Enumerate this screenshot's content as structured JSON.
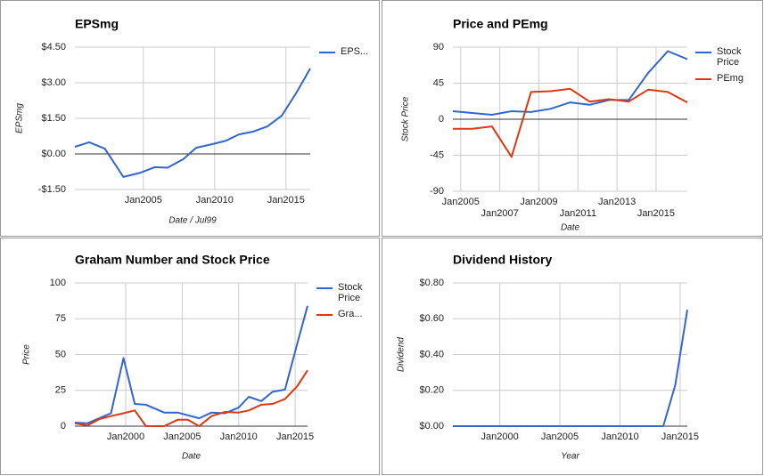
{
  "chart_data": [
    {
      "type": "line",
      "title": "EPSmg",
      "y_label": "EPSmg",
      "x_label": "Date / Jul99",
      "x": [
        2000.2,
        2001.2,
        2002.3,
        2003.6,
        2004.8,
        2005.8,
        2006.7,
        2007.8,
        2008.7,
        2009.8,
        2010.8,
        2011.7,
        2012.7,
        2013.7,
        2014.7,
        2015.7,
        2016.7
      ],
      "series": [
        {
          "name": "EPS...",
          "color": "#3366cc",
          "values": [
            0.3,
            0.49,
            0.22,
            -0.97,
            -0.79,
            -0.56,
            -0.58,
            -0.22,
            0.26,
            0.41,
            0.56,
            0.82,
            0.94,
            1.16,
            1.61,
            2.55,
            3.6
          ]
        }
      ],
      "xlim": [
        2000.2,
        2016.7
      ],
      "xticks": [
        {
          "value": 2005,
          "label": "Jan2005"
        },
        {
          "value": 2010,
          "label": "Jan2010"
        },
        {
          "value": 2015,
          "label": "Jan2015"
        }
      ],
      "ylim": [
        -1.5,
        4.5
      ],
      "yticks": [
        {
          "value": -1.5,
          "label": "-$1.50"
        },
        {
          "value": 0,
          "label": "$0.00"
        },
        {
          "value": 1.5,
          "label": "$1.50"
        },
        {
          "value": 3,
          "label": "$3.00"
        },
        {
          "value": 4.5,
          "label": "$4.50"
        }
      ],
      "grid": true,
      "legend": "right"
    },
    {
      "type": "line",
      "title": "Price and PEmg",
      "y_label": "Stock Price",
      "x_label": "Date",
      "x": [
        2004.6,
        2005.6,
        2006.6,
        2007.6,
        2008.6,
        2009.6,
        2010.6,
        2011.6,
        2012.6,
        2013.6,
        2014.6,
        2015.6,
        2016.6
      ],
      "series": [
        {
          "name": "Stock Price",
          "color": "#3366cc",
          "values": [
            10,
            7.8,
            5.6,
            10,
            9,
            13,
            21,
            18,
            24,
            24,
            58,
            85,
            75
          ]
        },
        {
          "name": "PEmg",
          "color": "#dc3912",
          "values": [
            -12,
            -12,
            -9,
            -47,
            34,
            35,
            38,
            22,
            25,
            22,
            37,
            34,
            21
          ]
        }
      ],
      "xlim": [
        2004.6,
        2016.6
      ],
      "xticks": [
        {
          "value": 2005,
          "label": "Jan2005"
        },
        {
          "value": 2007,
          "label": "Jan2007"
        },
        {
          "value": 2009,
          "label": "Jan2009"
        },
        {
          "value": 2011,
          "label": "Jan2011"
        },
        {
          "value": 2013,
          "label": "Jan2013"
        },
        {
          "value": 2015,
          "label": "Jan2015"
        }
      ],
      "ylim": [
        -90,
        90
      ],
      "yticks": [
        -90,
        -45,
        0,
        45,
        90
      ],
      "grid": true,
      "legend": "right"
    },
    {
      "type": "line",
      "title": "Graham Number and Stock Price",
      "y_label": "Price",
      "x_label": "Date",
      "series": [
        {
          "name": "Stock Price",
          "color": "#3366cc",
          "x": [
            1995.5,
            1996.6,
            1998.7,
            1999.8,
            2000.8,
            2001.8,
            2003.4,
            2004.6,
            2006.5,
            2007.6,
            2008.8,
            2010.0,
            2010.9,
            2012.0,
            2013.0,
            2014.1,
            2015.2,
            2016.1
          ],
          "values": [
            2.5,
            2,
            9,
            47.5,
            15.5,
            15,
            9.5,
            9.5,
            5.5,
            9.5,
            9,
            13,
            20.5,
            17.5,
            24,
            25.5,
            58,
            84
          ]
        },
        {
          "name": "Gra...",
          "color": "#dc3912",
          "x": [
            1995.5,
            1996.6,
            1997.7,
            1998.7,
            1999.8,
            2000.8,
            2001.8,
            2003.4,
            2004.6,
            2005.5,
            2006.5,
            2007.6,
            2008.8,
            2010.0,
            2010.9,
            2012.0,
            2013.0,
            2014.1,
            2015.2,
            2016.1
          ],
          "values": [
            2,
            0.5,
            5,
            7,
            9,
            11,
            0,
            0,
            4.5,
            4.5,
            0,
            7,
            10,
            9.5,
            11,
            15,
            15.5,
            19,
            28,
            39
          ]
        }
      ],
      "xlim": [
        1995.5,
        2016.1
      ],
      "xticks": [
        {
          "value": 2000,
          "label": "Jan2000"
        },
        {
          "value": 2005,
          "label": "Jan2005"
        },
        {
          "value": 2010,
          "label": "Jan2010"
        },
        {
          "value": 2015,
          "label": "Jan2015"
        }
      ],
      "ylim": [
        0,
        100
      ],
      "yticks": [
        0,
        25,
        50,
        75,
        100
      ],
      "grid": true,
      "legend": "right"
    },
    {
      "type": "line",
      "title": "Dividend History",
      "y_label": "Dividend",
      "x_label": "Year",
      "x": [
        1996.1,
        2013.6,
        2014.6,
        2015.6
      ],
      "series": [
        {
          "name": "Dividend",
          "color": "#3366cc",
          "values": [
            0,
            0,
            0.23,
            0.65
          ]
        }
      ],
      "xlim": [
        1996.1,
        2015.6
      ],
      "xticks": [
        {
          "value": 2000,
          "label": "Jan2000"
        },
        {
          "value": 2005,
          "label": "Jan2005"
        },
        {
          "value": 2010,
          "label": "Jan2010"
        },
        {
          "value": 2015,
          "label": "Jan2015"
        }
      ],
      "ylim": [
        0,
        0.8
      ],
      "yticks": [
        {
          "value": 0,
          "label": "$0.00"
        },
        {
          "value": 0.2,
          "label": "$0.20"
        },
        {
          "value": 0.4,
          "label": "$0.40"
        },
        {
          "value": 0.6,
          "label": "$0.60"
        },
        {
          "value": 0.8,
          "label": "$0.80"
        }
      ],
      "grid": true
    }
  ]
}
